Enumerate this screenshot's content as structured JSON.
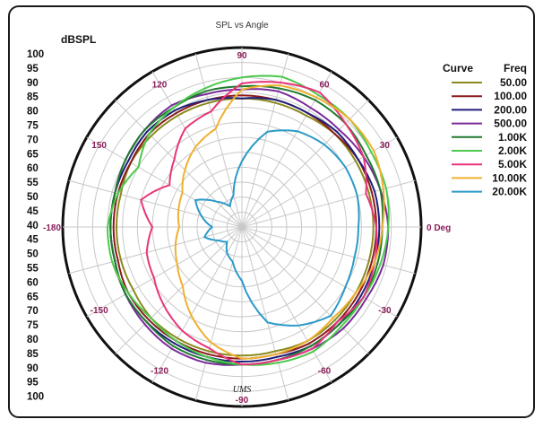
{
  "chart_data": {
    "type": "line",
    "polar": true,
    "title": "SPL vs Angle",
    "r_axis_label": "dBSPL",
    "r_range": [
      40,
      100
    ],
    "r_ticks": [
      40,
      45,
      50,
      55,
      60,
      65,
      70,
      75,
      80,
      85,
      90,
      95,
      100
    ],
    "r_tick_labels_top": [
      "100",
      "95",
      "90",
      "85",
      "80",
      "75",
      "70",
      "65",
      "60",
      "55",
      "50",
      "45",
      "40"
    ],
    "r_tick_labels_bottom": [
      "45",
      "50",
      "55",
      "60",
      "65",
      "70",
      "75",
      "80",
      "85",
      "90",
      "95",
      "100"
    ],
    "angle_labels": [
      {
        "angle": 90,
        "text": "90"
      },
      {
        "angle": 60,
        "text": "60"
      },
      {
        "angle": 30,
        "text": "30"
      },
      {
        "angle": 0,
        "text": "0 Deg"
      },
      {
        "angle": -30,
        "text": "-30"
      },
      {
        "angle": -60,
        "text": "-60"
      },
      {
        "angle": -90,
        "text": "-90"
      },
      {
        "angle": -120,
        "text": "-120"
      },
      {
        "angle": -150,
        "text": "-150"
      },
      {
        "angle": 180,
        "text": "-180"
      },
      {
        "angle": 150,
        "text": "150"
      },
      {
        "angle": 120,
        "text": "120"
      }
    ],
    "legend_headers": {
      "curve": "Curve",
      "freq": "Freq"
    },
    "legend_placement": "right",
    "grid": true,
    "annotation": "UMS",
    "angles_deg": [
      0,
      15,
      30,
      45,
      60,
      75,
      90,
      105,
      120,
      135,
      150,
      165,
      180,
      195,
      210,
      225,
      240,
      255,
      270,
      285,
      300,
      315,
      330,
      345
    ],
    "series": [
      {
        "name": "50.00",
        "color": "#8a8a1e",
        "values": [
          84,
          84,
          84,
          84,
          83,
          83,
          83,
          83,
          83,
          83,
          83,
          82,
          82,
          82,
          82,
          83,
          83,
          83,
          83,
          83,
          84,
          84,
          84,
          84
        ]
      },
      {
        "name": "100.00",
        "color": "#8b1a1a",
        "values": [
          85,
          85,
          85,
          84,
          84,
          84,
          84,
          84,
          84,
          84,
          83,
          83,
          83,
          83,
          84,
          84,
          84,
          84,
          84,
          84,
          85,
          85,
          85,
          85
        ]
      },
      {
        "name": "200.00",
        "color": "#1f1f7a",
        "values": [
          86,
          86,
          85,
          85,
          84,
          84,
          83,
          84,
          85,
          85,
          84,
          84,
          84,
          84,
          85,
          85,
          85,
          85,
          85,
          85,
          86,
          86,
          86,
          86
        ]
      },
      {
        "name": "500.00",
        "color": "#7a2a9a",
        "values": [
          89,
          88,
          87,
          86,
          86,
          87,
          86,
          86,
          87,
          86,
          85,
          84,
          84,
          84,
          85,
          86,
          87,
          87,
          86,
          86,
          87,
          88,
          88,
          89
        ]
      },
      {
        "name": "1.00K",
        "color": "#1e7a2e",
        "values": [
          87,
          88,
          88,
          89,
          89,
          88,
          87,
          87,
          86,
          86,
          85,
          84,
          84,
          84,
          85,
          85,
          86,
          86,
          86,
          86,
          86,
          86,
          87,
          87
        ]
      },
      {
        "name": "2.00K",
        "color": "#4cc94c",
        "values": [
          89,
          90,
          90,
          91,
          91,
          92,
          90,
          88,
          86,
          84,
          80,
          83,
          85,
          85,
          84,
          83,
          84,
          85,
          86,
          87,
          88,
          87,
          87,
          88
        ]
      },
      {
        "name": "5.00K",
        "color": "#e8357a",
        "values": [
          85,
          83,
          87,
          89,
          92,
          90,
          88,
          80,
          78,
          72,
          68,
          75,
          70,
          73,
          74,
          77,
          80,
          82,
          86,
          86,
          87,
          85,
          87,
          86
        ]
      },
      {
        "name": "10.00K",
        "color": "#f0b030",
        "values": [
          87,
          89,
          91,
          91,
          90,
          89,
          86,
          74,
          71,
          67,
          63,
          62,
          61,
          63,
          65,
          68,
          74,
          80,
          84,
          84,
          84,
          83,
          84,
          86
        ]
      },
      {
        "name": "20.00K",
        "color": "#2a9ac8",
        "values": [
          79,
          80,
          80,
          79,
          77,
          73,
          62,
          51,
          48,
          52,
          58,
          54,
          50,
          53,
          49,
          47,
          50,
          52,
          58,
          73,
          78,
          82,
          80,
          79
        ]
      }
    ]
  }
}
